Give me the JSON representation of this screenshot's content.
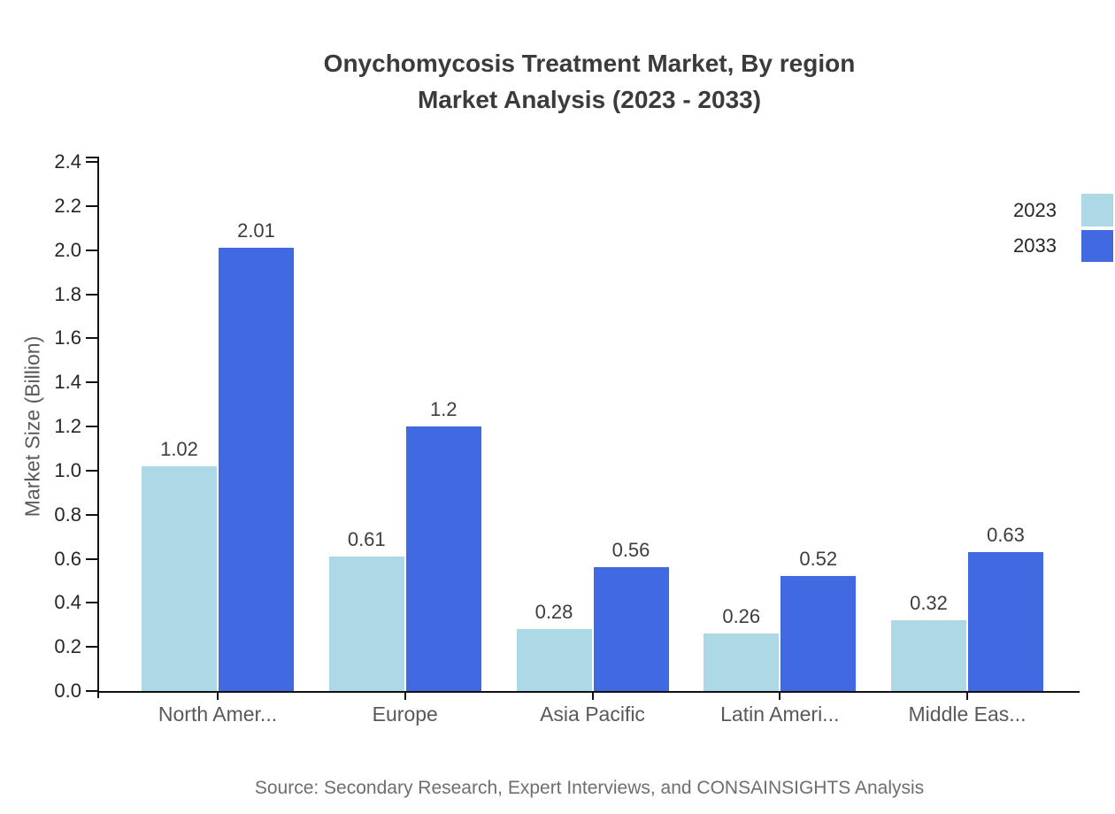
{
  "title": {
    "line1": "Onychomycosis Treatment Market, By region",
    "line2": "Market Analysis (2023 - 2033)"
  },
  "source": {
    "text": "Source: Secondary Research, Expert Interviews, and CONSAINSIGHTS Analysis"
  },
  "colors": {
    "series_2023": "#ADD8E6",
    "series_2033": "#4169E1",
    "axis_line": "#111111",
    "title_text": "#3b3b3b",
    "tick_text": "#262626",
    "category_text": "#595959",
    "value_label_text": "#3d3d3d",
    "source_text": "#6e6e6e",
    "background": "#ffffff"
  },
  "chart_data": {
    "type": "bar",
    "title": "Onychomycosis Treatment Market, By region Market Analysis (2023 - 2033)",
    "xlabel": "",
    "ylabel": "Market Size (Billion)",
    "categories": [
      "North Amer...",
      "Europe",
      "Asia Pacific",
      "Latin Ameri...",
      "Middle Eas..."
    ],
    "series": [
      {
        "name": "2023",
        "color": "#ADD8E6",
        "values": [
          1.02,
          0.61,
          0.28,
          0.26,
          0.32
        ]
      },
      {
        "name": "2033",
        "color": "#4169E1",
        "values": [
          2.01,
          1.2,
          0.56,
          0.52,
          0.63
        ]
      }
    ],
    "value_labels": [
      [
        "1.02",
        "0.61",
        "0.28",
        "0.26",
        "0.32"
      ],
      [
        "2.01",
        "1.2",
        "0.56",
        "0.52",
        "0.63"
      ]
    ],
    "ylim": [
      0,
      2.4
    ],
    "yticks": [
      "0.0",
      "0.2",
      "0.4",
      "0.6",
      "0.8",
      "1.0",
      "1.2",
      "1.4",
      "1.6",
      "1.8",
      "2.0",
      "2.2",
      "2.4"
    ],
    "grid": false,
    "legend_position": "top-right",
    "legend_entries": [
      "2023",
      "2033"
    ]
  }
}
